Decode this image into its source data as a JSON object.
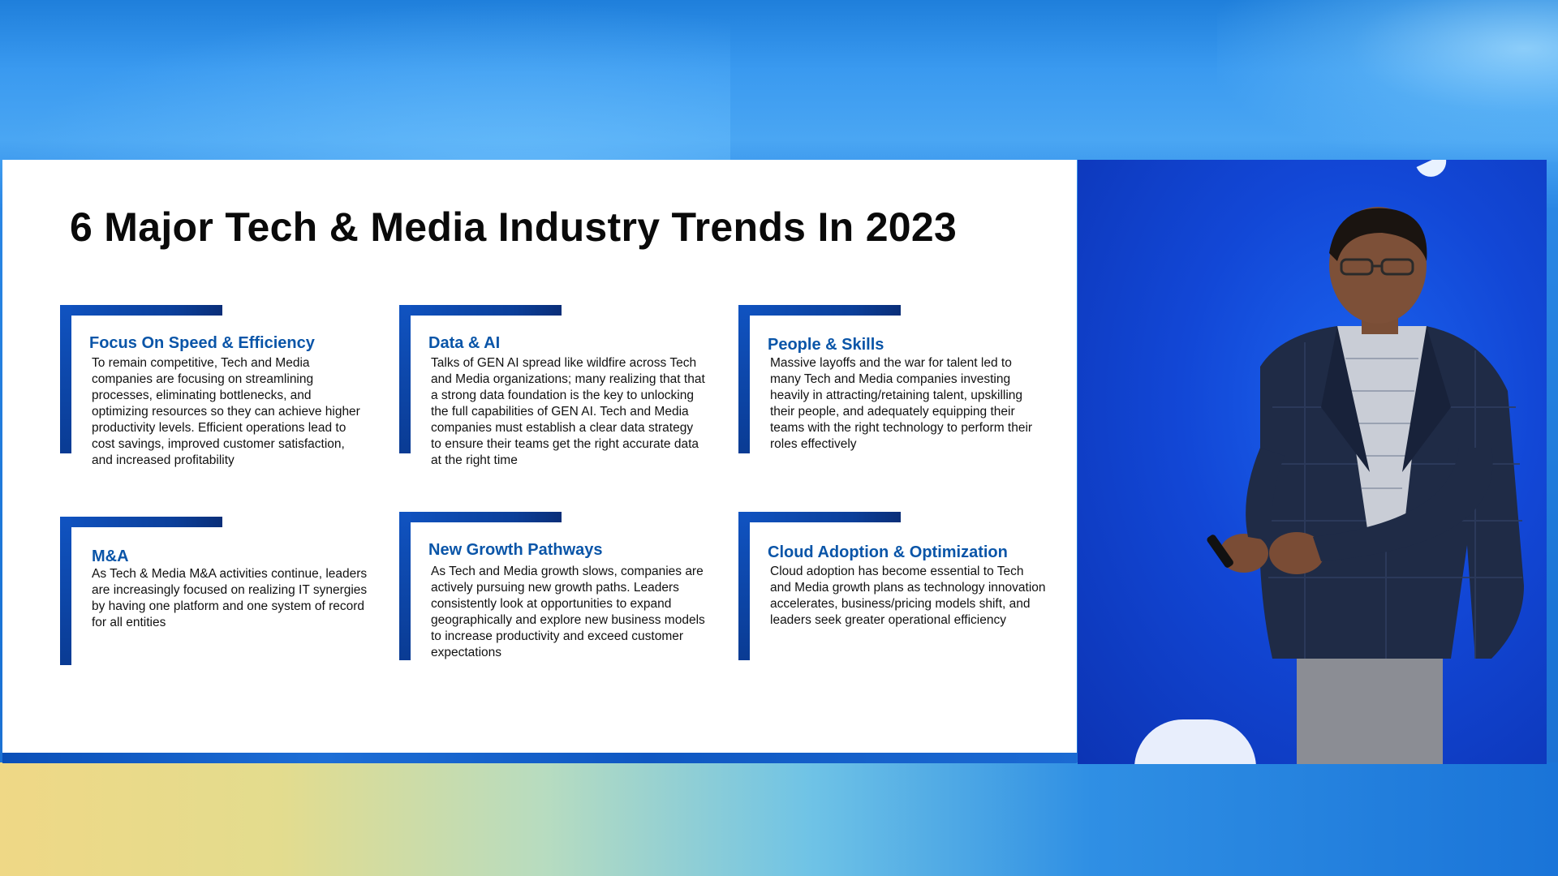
{
  "slide": {
    "title": "6 Major Tech & Media Industry Trends In 2023",
    "accent_color": "#0a55a8",
    "bracket_color": "#1053c1",
    "trends": [
      {
        "title": "Focus On Speed & Efficiency",
        "body": "To remain competitive, Tech and Media companies are focusing on streamlining processes, eliminating bottlenecks, and optimizing resources so they can achieve higher productivity levels. Efficient operations lead to cost savings, improved customer satisfaction, and increased profitability"
      },
      {
        "title": "Data &  AI",
        "body": "Talks of GEN AI spread like wildfire across Tech and Media organizations; many realizing that that a strong data foundation is the key to unlocking the full capabilities of GEN AI. Tech and Media companies must establish a clear data strategy to ensure their teams get the right accurate data at the right time"
      },
      {
        "title": "People & Skills",
        "body": "Massive layoffs and the war for talent led to many Tech and Media companies investing heavily in attracting/retaining talent, upskilling their people, and adequately equipping their teams with the right technology to perform their roles effectively"
      },
      {
        "title": "M&A",
        "body": "As Tech & Media M&A activities continue, leaders are increasingly focused on realizing IT synergies by having one platform and one system of record for all entities"
      },
      {
        "title": "New Growth Pathways",
        "body": "As Tech and Media growth slows, companies are actively pursuing new growth paths. Leaders consistently look at opportunities to expand geographically and explore new business models to increase productivity and exceed customer expectations"
      },
      {
        "title": "Cloud Adoption & Optimization",
        "body": "Cloud adoption has become essential to Tech and Media growth plans as technology innovation accelerates, business/pricing models shift, and leaders seek greater operational efficiency"
      }
    ]
  },
  "speaker_panel": {
    "background_color": "#1247d6"
  }
}
